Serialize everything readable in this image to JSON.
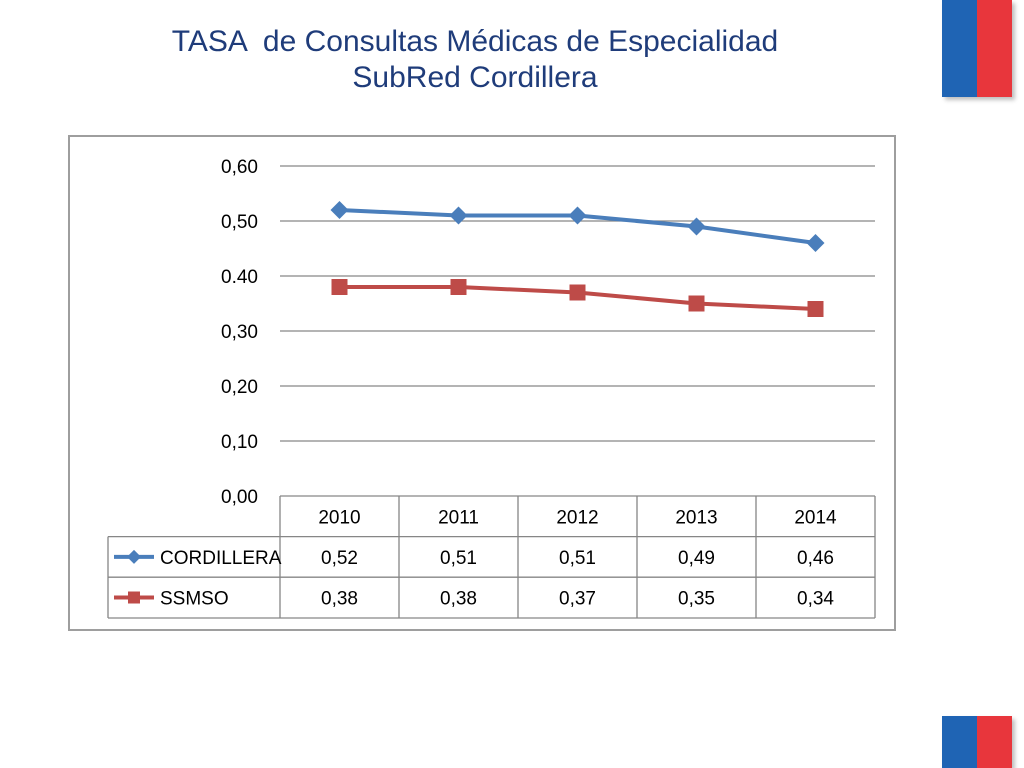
{
  "slide": {
    "title_line1": "TASA  de Consultas Médicas de Especialidad",
    "title_line2": "SubRed Cordillera"
  },
  "colors": {
    "title": "#1f3c7a",
    "flag_blue": "#1f64b4",
    "flag_red": "#e8363c",
    "series_1": "#4a7ebb",
    "series_2": "#be4b48",
    "grid": "#868686"
  },
  "chart_data": {
    "type": "line",
    "title": "",
    "xlabel": "",
    "ylabel": "",
    "ylim": [
      0,
      0.6
    ],
    "y_tick_labels": [
      "0,00",
      "0,10",
      "0,20",
      "0,30",
      "0.40",
      "0,50",
      "0,60"
    ],
    "categories": [
      "2010",
      "2011",
      "2012",
      "2013",
      "2014"
    ],
    "series": [
      {
        "name": "CORDILLERA",
        "marker": "diamond",
        "values": [
          0.52,
          0.51,
          0.51,
          0.49,
          0.46
        ],
        "value_labels": [
          "0,52",
          "0,51",
          "0,51",
          "0,49",
          "0,46"
        ]
      },
      {
        "name": "SSMSO",
        "marker": "square",
        "values": [
          0.38,
          0.38,
          0.37,
          0.35,
          0.34
        ],
        "value_labels": [
          "0,38",
          "0,38",
          "0,37",
          "0,35",
          "0,34"
        ]
      }
    ],
    "grid": true,
    "data_table": true
  }
}
